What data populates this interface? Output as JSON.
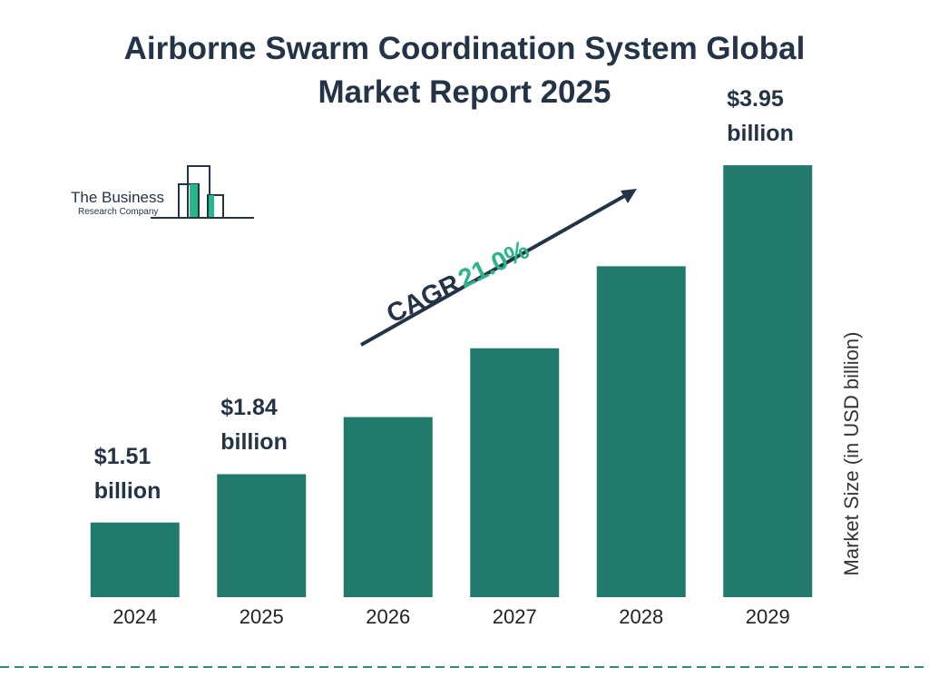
{
  "chart_data": {
    "type": "bar",
    "title": "Airborne Swarm Coordination System Global Market Report 2025",
    "categories": [
      "2024",
      "2025",
      "2026",
      "2027",
      "2028",
      "2029"
    ],
    "values": [
      1.51,
      1.84,
      2.23,
      2.7,
      3.26,
      3.95
    ],
    "value_labels": [
      "$1.51 billion",
      "$1.84 billion",
      null,
      null,
      null,
      "$3.95 billion"
    ],
    "color": "#217a6b",
    "ylim": [
      1.0,
      4.0
    ],
    "y_label": "Market Size (in USD billion)",
    "cagr_label": "CAGR",
    "cagr_value": "21.0%",
    "logo": [
      "The Business",
      "Research Company"
    ]
  }
}
